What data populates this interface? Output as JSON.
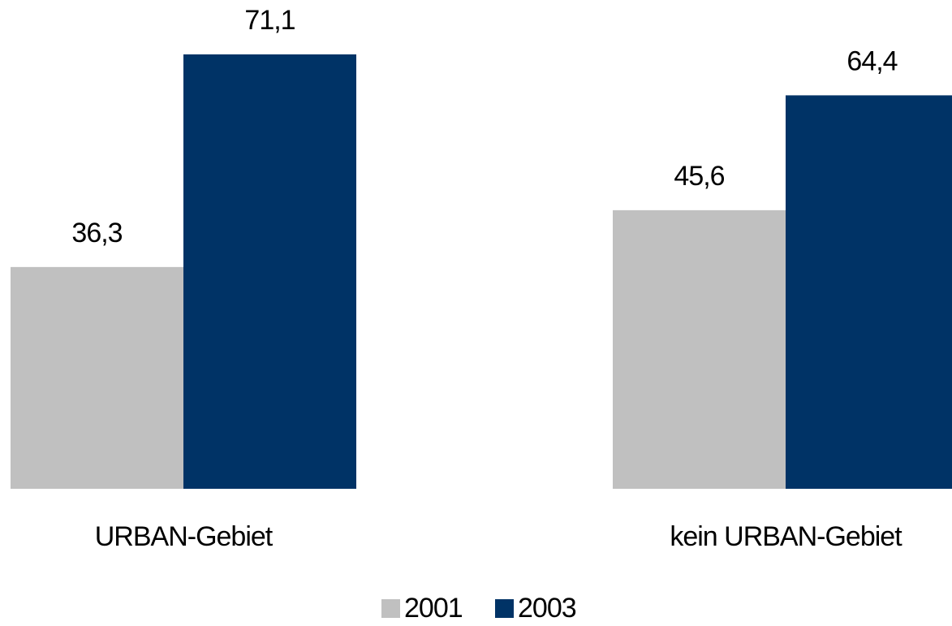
{
  "chart_data": {
    "type": "bar",
    "categories": [
      "URBAN-Gebiet",
      "kein URBAN-Gebiet"
    ],
    "series": [
      {
        "name": "2001",
        "color": "#c0c0c0",
        "values": [
          36.3,
          45.6
        ],
        "value_labels": [
          "36,3",
          "45,6"
        ]
      },
      {
        "name": "2003",
        "color": "#003366",
        "values": [
          71.1,
          64.4
        ],
        "value_labels": [
          "71,1",
          "64,4"
        ]
      }
    ]
  }
}
